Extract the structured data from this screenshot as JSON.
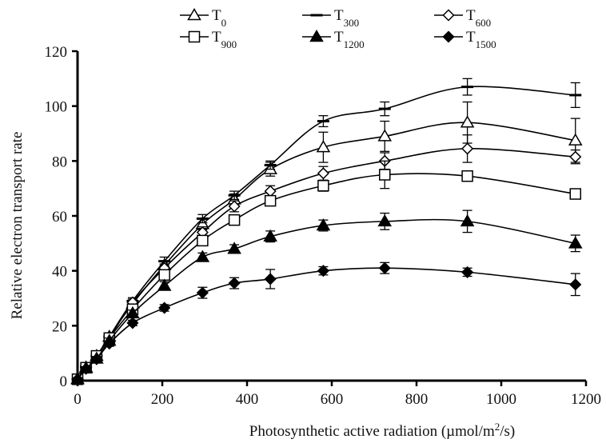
{
  "chart_data": {
    "type": "line",
    "title": "",
    "xlabel": "Photosynthetic active radiation (µmol/m²/s)",
    "xlabel_parts": {
      "main": "Photosynthetic active radiation (µmol/m",
      "sup": "2",
      "end": "/s)"
    },
    "ylabel": "Relative electron transport rate",
    "xlim": [
      0,
      1200
    ],
    "ylim": [
      0,
      120
    ],
    "xticks": [
      0,
      200,
      400,
      600,
      800,
      1000,
      1200
    ],
    "yticks": [
      0,
      20,
      40,
      60,
      80,
      100,
      120
    ],
    "xtick_labels": [
      "0",
      "200",
      "400",
      "600",
      "800",
      "1000",
      "1200"
    ],
    "ytick_labels": [
      "0",
      "20",
      "40",
      "60",
      "80",
      "100",
      "120"
    ],
    "grid": false,
    "legend_position": "top",
    "x": [
      0,
      20,
      45,
      75,
      130,
      205,
      295,
      370,
      455,
      580,
      725,
      920,
      1175
    ],
    "series": [
      {
        "name": "T0",
        "label_main": "T",
        "label_sub": "0",
        "marker": "triangle-open",
        "values": [
          0.5,
          4.8,
          9.0,
          16.0,
          28.0,
          42.0,
          57.0,
          66.0,
          77.0,
          85.0,
          89.0,
          94.0,
          87.5
        ],
        "errors": [
          0.5,
          0.6,
          0.8,
          1.0,
          1.2,
          1.5,
          2.0,
          2.0,
          2.5,
          5.5,
          5.5,
          7.5,
          8.0
        ]
      },
      {
        "name": "T300",
        "label_main": "T",
        "label_sub": "300",
        "marker": "dash",
        "values": [
          0.5,
          5.0,
          9.0,
          16.0,
          29.0,
          43.5,
          59.0,
          67.5,
          78.5,
          94.5,
          99.0,
          107.0,
          104.0
        ],
        "errors": [
          0.5,
          0.6,
          0.8,
          1.0,
          1.2,
          1.5,
          1.5,
          1.5,
          1.5,
          2.0,
          2.5,
          3.0,
          4.5
        ]
      },
      {
        "name": "T600",
        "label_main": "T",
        "label_sub": "600",
        "marker": "diamond-open",
        "values": [
          0.5,
          4.8,
          9.0,
          15.5,
          28.5,
          41.0,
          54.0,
          63.5,
          69.0,
          75.5,
          80.0,
          84.5,
          81.5
        ],
        "errors": [
          0.5,
          0.6,
          0.8,
          1.0,
          1.2,
          1.5,
          2.0,
          2.0,
          2.0,
          2.5,
          3.0,
          5.0,
          2.5
        ]
      },
      {
        "name": "T900",
        "label_main": "T",
        "label_sub": "900",
        "marker": "square-open",
        "values": [
          0.5,
          4.7,
          9.0,
          15.5,
          26.0,
          38.5,
          51.0,
          58.5,
          65.5,
          71.0,
          75.0,
          74.5,
          68.0
        ],
        "errors": [
          0.5,
          0.6,
          0.8,
          1.0,
          1.2,
          1.5,
          1.5,
          1.5,
          1.5,
          2.0,
          5.0,
          1.5,
          1.5
        ]
      },
      {
        "name": "T1200",
        "label_main": "T",
        "label_sub": "1200",
        "marker": "triangle-filled",
        "values": [
          0.5,
          4.5,
          8.0,
          14.5,
          24.5,
          34.5,
          45.0,
          48.0,
          52.5,
          56.5,
          58.0,
          58.0,
          50.0
        ],
        "errors": [
          0.5,
          0.6,
          0.8,
          1.0,
          1.2,
          1.5,
          1.5,
          1.5,
          2.0,
          2.0,
          3.0,
          4.0,
          3.0
        ]
      },
      {
        "name": "T1500",
        "label_main": "T",
        "label_sub": "1500",
        "marker": "diamond-filled",
        "values": [
          0.5,
          4.3,
          7.8,
          13.5,
          21.0,
          26.5,
          32.0,
          35.5,
          37.0,
          40.0,
          41.0,
          39.5,
          35.0
        ],
        "errors": [
          0.5,
          0.6,
          0.8,
          1.0,
          1.0,
          1.2,
          2.0,
          2.0,
          3.5,
          1.5,
          2.0,
          1.5,
          4.0
        ]
      }
    ]
  }
}
